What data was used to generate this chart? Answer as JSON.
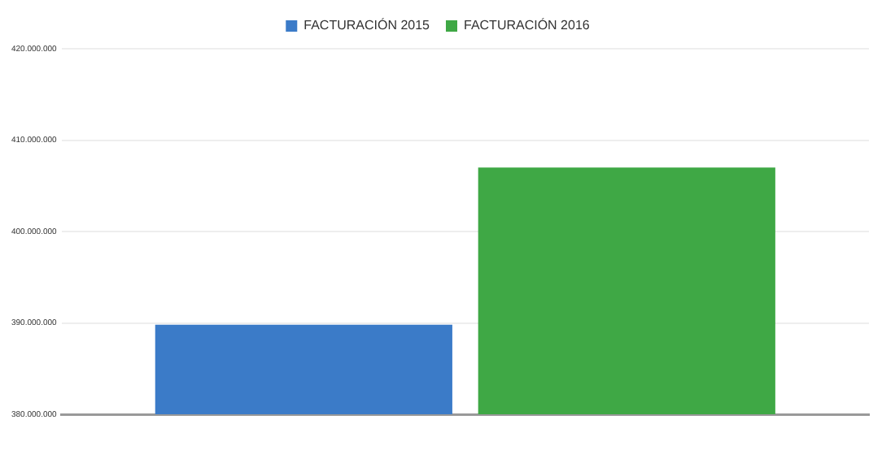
{
  "chart_data": {
    "type": "bar",
    "categories": [
      null
    ],
    "series": [
      {
        "name": "FACTURACIÓN 2015",
        "color": "#3b7bc8",
        "values": [
          389800000
        ]
      },
      {
        "name": "FACTURACIÓN 2016",
        "color": "#3fa845",
        "values": [
          407000000
        ]
      }
    ],
    "ylim": [
      380000000,
      420000000
    ],
    "yticks": [
      {
        "value": 380000000,
        "label": "380.000.000"
      },
      {
        "value": 390000000,
        "label": "390.000.000"
      },
      {
        "value": 400000000,
        "label": "400.000.000"
      },
      {
        "value": 410000000,
        "label": "410.000.000"
      },
      {
        "value": 420000000,
        "label": "420.000.000"
      }
    ],
    "grid": "y",
    "legend": "top"
  }
}
